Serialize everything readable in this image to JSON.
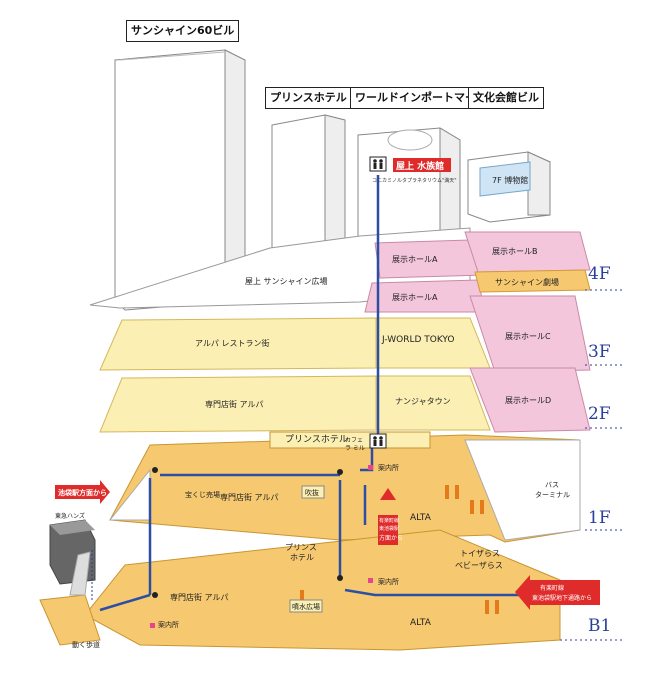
{
  "buildings": {
    "sunshine60": "サンシャイン60ビル",
    "prince_hotel": "プリンスホテル",
    "world_import_mart": "ワールドインポートマートビル",
    "bunka_kaikan": "文化会館ビル"
  },
  "rooftop": {
    "aquarium": "屋上 水族館",
    "planetarium": "コニカミノルタプラネタリウム\"満天\"",
    "plaza": "屋上 サンシャイン広場",
    "museum": "7F 博物館"
  },
  "floors": {
    "f4": {
      "label": "4F",
      "hall_a_upper": "展示ホールA",
      "hall_a_lower": "展示ホールA",
      "hall_b": "展示ホールB",
      "theater": "サンシャイン劇場"
    },
    "f3": {
      "label": "3F",
      "restaurants": "アルパ レストラン街",
      "jworld": "J-WORLD TOKYO",
      "hall_c": "展示ホールC"
    },
    "f2": {
      "label": "2F",
      "alpa": "専門店街 アルパ",
      "namja": "ナンジャタウン",
      "hall_d": "展示ホールD"
    },
    "f1": {
      "label": "1F",
      "prince_hotel": "プリンスホテル",
      "cafe_line1": "カフェ",
      "cafe_line2": "ラ ミル",
      "info": "案内所",
      "lottery": "宝くじ売場",
      "alpa": "専門店街 アルパ",
      "fukibuki": "吹抜",
      "alta": "ALTA",
      "bus_line1": "バス",
      "bus_line2": "ターミナル",
      "from_station": "池袋駅方面から",
      "from_higashi_ikebukuro_l1": "有楽町線",
      "from_higashi_ikebukuro_l2": "東池袋駅",
      "from_higashi_ikebukuro_l3": "方面から"
    },
    "b1": {
      "label": "B1",
      "prince_line1": "プリンス",
      "prince_line2": "ホテル",
      "toys_line1": "トイザらス",
      "toys_line2": "ベビーザらス",
      "info_center": "案内所",
      "info_left": "案内所",
      "alpa": "専門店街 アルパ",
      "fountain": "噴水広場",
      "alta": "ALTA",
      "hands": "東急ハンズ",
      "walkway": "動く歩道",
      "from_underground_l1": "有楽町線",
      "from_underground_l2": "東池袋駅地下通路から"
    }
  },
  "colors": {
    "route": "#2d4fa3",
    "pink_hall": "#f3c6dc",
    "pale_yellow": "#fbefb3",
    "orange_floor": "#f6c870",
    "arrow_red": "#e02b2b",
    "floor_label": "#2a3f9d"
  }
}
